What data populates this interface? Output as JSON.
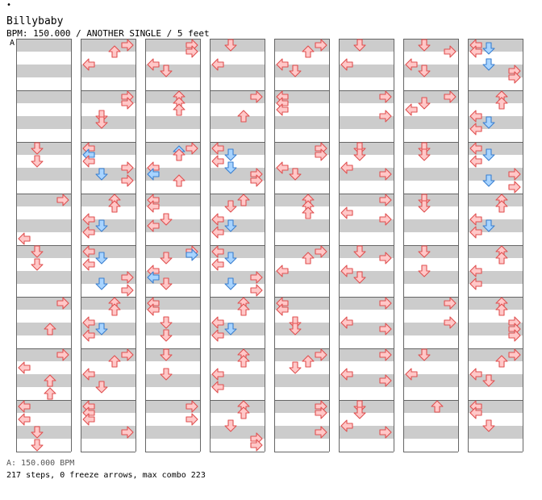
{
  "header": {
    "dot": "•",
    "title": "Billybaby",
    "subtitle": "BPM: 150.000 / ANOTHER SINGLE / 5 feet",
    "section_marker": "A"
  },
  "footer": {
    "bpm_line": "A: 150.000 BPM",
    "stats": "217 steps, 0 freeze arrows, max combo 223"
  },
  "colors": {
    "band_gray": "#cccccc",
    "measure_line": "#666666",
    "arrow_red_fill": "#ffc8c8",
    "arrow_red_stroke": "#e05050",
    "arrow_blue_fill": "#a8d4ff",
    "arrow_blue_stroke": "#3a7fd0"
  },
  "chart_data": {
    "type": "step-chart",
    "lanes": [
      "left",
      "down",
      "up",
      "right"
    ],
    "columns": 8,
    "measures_per_column": 8,
    "beats_per_measure": 4,
    "notes": [
      [
        [
          2,
          0.5,
          1
        ],
        [
          2,
          1.5,
          1
        ],
        [
          3,
          0.5,
          3
        ],
        [
          3,
          3.5,
          0
        ],
        [
          4,
          0.5,
          1
        ],
        [
          4,
          1.5,
          1
        ],
        [
          5,
          0.5,
          3
        ],
        [
          5,
          2.5,
          2
        ],
        [
          6,
          0.5,
          3
        ],
        [
          6,
          1.5,
          0
        ],
        [
          6,
          2.5,
          2
        ],
        [
          6,
          3.5,
          2
        ],
        [
          7,
          0.5,
          0
        ],
        [
          7,
          1.5,
          0
        ],
        [
          7,
          2.5,
          1
        ],
        [
          7,
          3.5,
          1
        ]
      ],
      [
        [
          0,
          0.5,
          3
        ],
        [
          0,
          1.0,
          2
        ],
        [
          0,
          2.0,
          0
        ],
        [
          1,
          0.5,
          3
        ],
        [
          1,
          1.0,
          3
        ],
        [
          1,
          2.0,
          1
        ],
        [
          1,
          2.5,
          1
        ],
        [
          2,
          0.5,
          0
        ],
        [
          2,
          1.0,
          0,
          "b"
        ],
        [
          2,
          1.5,
          0
        ],
        [
          2,
          2.0,
          3
        ],
        [
          2,
          2.5,
          1,
          "b"
        ],
        [
          2,
          3.0,
          3
        ],
        [
          3,
          0.5,
          2
        ],
        [
          3,
          1.0,
          2
        ],
        [
          3,
          2.0,
          0
        ],
        [
          3,
          2.5,
          1,
          "b"
        ],
        [
          3,
          3.0,
          0
        ],
        [
          4,
          0.5,
          0
        ],
        [
          4,
          1.0,
          1,
          "b"
        ],
        [
          4,
          1.5,
          0
        ],
        [
          4,
          2.5,
          3
        ],
        [
          4,
          3.0,
          1,
          "b"
        ],
        [
          4,
          3.5,
          3
        ],
        [
          5,
          0.5,
          2
        ],
        [
          5,
          1.0,
          2
        ],
        [
          5,
          2.0,
          0
        ],
        [
          5,
          2.5,
          1,
          "b"
        ],
        [
          5,
          3.0,
          0
        ],
        [
          6,
          0.5,
          3
        ],
        [
          6,
          1.0,
          2
        ],
        [
          6,
          2.0,
          0
        ],
        [
          6,
          3.0,
          1
        ],
        [
          7,
          0.5,
          0
        ],
        [
          7,
          1.0,
          0
        ],
        [
          7,
          1.5,
          0
        ],
        [
          7,
          2.5,
          3
        ]
      ],
      [
        [
          0,
          0.5,
          3
        ],
        [
          0,
          1.0,
          3
        ],
        [
          0,
          2.0,
          0
        ],
        [
          0,
          2.5,
          1
        ],
        [
          1,
          0.5,
          2
        ],
        [
          1,
          1.0,
          2
        ],
        [
          1,
          1.5,
          2
        ],
        [
          2,
          0.5,
          3
        ],
        [
          2,
          0.75,
          2,
          "b"
        ],
        [
          2,
          1.0,
          2
        ],
        [
          2,
          2.0,
          0
        ],
        [
          2,
          2.5,
          0,
          "b"
        ],
        [
          2,
          3.0,
          2
        ],
        [
          3,
          0.5,
          0
        ],
        [
          3,
          1.0,
          0
        ],
        [
          3,
          2.0,
          1
        ],
        [
          3,
          2.5,
          0
        ],
        [
          4,
          0.5,
          3
        ],
        [
          4,
          0.75,
          3,
          "b"
        ],
        [
          4,
          1.0,
          1
        ],
        [
          4,
          2.0,
          0
        ],
        [
          4,
          2.5,
          0,
          "b"
        ],
        [
          4,
          3.0,
          1
        ],
        [
          5,
          0.5,
          0
        ],
        [
          5,
          1.0,
          0
        ],
        [
          5,
          2.0,
          1
        ],
        [
          5,
          3.0,
          1
        ],
        [
          6,
          0.5,
          1
        ],
        [
          6,
          2.0,
          1
        ],
        [
          7,
          0.5,
          3
        ],
        [
          7,
          1.5,
          3
        ]
      ],
      [
        [
          0,
          0.5,
          1
        ],
        [
          0,
          2.0,
          0
        ],
        [
          1,
          0.5,
          3
        ],
        [
          1,
          2.0,
          2
        ],
        [
          2,
          0.5,
          0
        ],
        [
          2,
          1.0,
          1,
          "b"
        ],
        [
          2,
          1.5,
          0
        ],
        [
          2,
          2.0,
          1,
          "b"
        ],
        [
          2,
          2.5,
          3
        ],
        [
          2,
          3.0,
          3
        ],
        [
          3,
          0.5,
          2
        ],
        [
          3,
          1.0,
          1
        ],
        [
          3,
          2.0,
          0
        ],
        [
          3,
          2.5,
          1,
          "b"
        ],
        [
          3,
          3.0,
          0
        ],
        [
          4,
          0.5,
          0
        ],
        [
          4,
          1.0,
          1,
          "b"
        ],
        [
          4,
          1.5,
          0
        ],
        [
          4,
          2.5,
          3
        ],
        [
          4,
          3.0,
          1,
          "b"
        ],
        [
          4,
          3.5,
          3
        ],
        [
          5,
          0.5,
          2
        ],
        [
          5,
          1.0,
          2
        ],
        [
          5,
          2.0,
          0
        ],
        [
          5,
          2.5,
          1,
          "b"
        ],
        [
          5,
          3.0,
          0
        ],
        [
          6,
          0.5,
          2
        ],
        [
          6,
          1.0,
          2
        ],
        [
          6,
          2.0,
          0
        ],
        [
          6,
          3.0,
          0
        ],
        [
          7,
          0.5,
          2
        ],
        [
          7,
          1.0,
          2
        ],
        [
          7,
          2.0,
          1
        ],
        [
          7,
          3.0,
          3
        ],
        [
          7,
          3.5,
          3
        ]
      ],
      [
        [
          0,
          0.5,
          3
        ],
        [
          0,
          1.0,
          2
        ],
        [
          0,
          2.0,
          0
        ],
        [
          0,
          2.5,
          1
        ],
        [
          1,
          0.5,
          0
        ],
        [
          1,
          1.0,
          0
        ],
        [
          1,
          1.5,
          0
        ],
        [
          2,
          0.5,
          3
        ],
        [
          2,
          1.0,
          3
        ],
        [
          2,
          2.0,
          0
        ],
        [
          2,
          2.5,
          1
        ],
        [
          3,
          0.5,
          2
        ],
        [
          3,
          1.0,
          2
        ],
        [
          3,
          1.5,
          2
        ],
        [
          4,
          0.5,
          3
        ],
        [
          4,
          1.0,
          2
        ],
        [
          4,
          2.0,
          0
        ],
        [
          5,
          0.5,
          0
        ],
        [
          5,
          1.0,
          0
        ],
        [
          5,
          2.0,
          1
        ],
        [
          5,
          2.5,
          1
        ],
        [
          6,
          0.5,
          3
        ],
        [
          6,
          1.0,
          2
        ],
        [
          6,
          1.5,
          1
        ],
        [
          7,
          0.5,
          3
        ],
        [
          7,
          1.0,
          3
        ],
        [
          7,
          2.5,
          3
        ]
      ],
      [
        [
          0,
          0.5,
          1
        ],
        [
          0,
          2.0,
          0
        ],
        [
          1,
          0.5,
          3
        ],
        [
          1,
          2.0,
          3
        ],
        [
          2,
          0.5,
          1
        ],
        [
          2,
          1.0,
          1
        ],
        [
          2,
          2.0,
          0
        ],
        [
          2,
          2.5,
          3
        ],
        [
          3,
          0.5,
          3
        ],
        [
          3,
          1.5,
          0
        ],
        [
          3,
          2.0,
          3
        ],
        [
          4,
          0.5,
          1
        ],
        [
          4,
          1.0,
          3
        ],
        [
          4,
          2.0,
          0
        ],
        [
          4,
          2.5,
          1
        ],
        [
          5,
          0.5,
          3
        ],
        [
          5,
          2.0,
          0
        ],
        [
          5,
          2.5,
          3
        ],
        [
          6,
          0.5,
          3
        ],
        [
          6,
          2.0,
          0
        ],
        [
          6,
          2.5,
          3
        ],
        [
          7,
          0.5,
          1
        ],
        [
          7,
          1.0,
          1
        ],
        [
          7,
          2.0,
          0
        ],
        [
          7,
          2.5,
          3
        ]
      ],
      [
        [
          0,
          0.5,
          1
        ],
        [
          0,
          1.0,
          3
        ],
        [
          0,
          2.0,
          0
        ],
        [
          0,
          2.5,
          1
        ],
        [
          1,
          0.5,
          3
        ],
        [
          1,
          1.0,
          1
        ],
        [
          1,
          1.5,
          0
        ],
        [
          2,
          0.5,
          1
        ],
        [
          2,
          1.0,
          1
        ],
        [
          3,
          0.5,
          1
        ],
        [
          3,
          1.0,
          1
        ],
        [
          4,
          0.5,
          1
        ],
        [
          4,
          2.0,
          1
        ],
        [
          5,
          0.5,
          3
        ],
        [
          5,
          2.0,
          3
        ],
        [
          6,
          0.5,
          1
        ],
        [
          6,
          2.0,
          0
        ],
        [
          7,
          0.5,
          2
        ]
      ],
      [
        [
          0,
          0.5,
          0
        ],
        [
          0,
          0.75,
          1,
          "b"
        ],
        [
          0,
          1.0,
          0
        ],
        [
          0,
          2.0,
          1,
          "b"
        ],
        [
          0,
          2.5,
          3
        ],
        [
          0,
          3.0,
          3
        ],
        [
          1,
          0.5,
          2
        ],
        [
          1,
          1.0,
          2
        ],
        [
          1,
          2.0,
          0
        ],
        [
          1,
          2.5,
          1,
          "b"
        ],
        [
          1,
          3.0,
          0
        ],
        [
          2,
          0.5,
          0
        ],
        [
          2,
          1.0,
          1,
          "b"
        ],
        [
          2,
          1.5,
          0
        ],
        [
          2,
          2.5,
          3
        ],
        [
          2,
          3.0,
          1,
          "b"
        ],
        [
          2,
          3.5,
          3
        ],
        [
          3,
          0.5,
          2
        ],
        [
          3,
          1.0,
          2
        ],
        [
          3,
          2.0,
          0
        ],
        [
          3,
          2.5,
          1,
          "b"
        ],
        [
          3,
          3.0,
          0
        ],
        [
          4,
          0.5,
          2
        ],
        [
          4,
          1.0,
          2
        ],
        [
          4,
          2.0,
          0
        ],
        [
          4,
          3.0,
          0
        ],
        [
          5,
          0.5,
          2
        ],
        [
          5,
          1.0,
          2
        ],
        [
          5,
          2.0,
          3
        ],
        [
          5,
          2.5,
          3
        ],
        [
          5,
          3.0,
          3
        ],
        [
          6,
          0.5,
          3
        ],
        [
          6,
          1.0,
          2
        ],
        [
          6,
          2.0,
          0
        ],
        [
          6,
          2.5,
          1
        ],
        [
          7,
          0.5,
          0
        ],
        [
          7,
          1.0,
          0
        ],
        [
          7,
          2.0,
          1
        ]
      ]
    ]
  }
}
